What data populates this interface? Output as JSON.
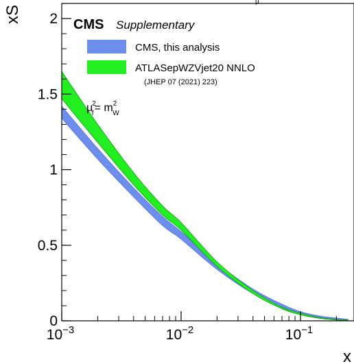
{
  "chart_data": {
    "type": "area",
    "title": "",
    "xlabel": "x",
    "ylabel": "xS",
    "xscale": "log",
    "xlim": [
      0.001,
      0.25
    ],
    "ylim": [
      0,
      2.1
    ],
    "x_ticks": [
      {
        "value": 0.001,
        "base": "10",
        "exp": "−3"
      },
      {
        "value": 0.01,
        "base": "10",
        "exp": "−2"
      },
      {
        "value": 0.1,
        "base": "10",
        "exp": "−1"
      }
    ],
    "y_ticks": [
      {
        "value": 0,
        "label": "0"
      },
      {
        "value": 0.5,
        "label": "0.5"
      },
      {
        "value": 1,
        "label": "1"
      },
      {
        "value": 1.5,
        "label": "1.5"
      },
      {
        "value": 2,
        "label": "2"
      }
    ],
    "experiment": "CMS",
    "experiment_extra": "Supplementary",
    "scale_label": {
      "mu": "μ",
      "mu_sub": "f",
      "mu_sup": "2",
      "eq": "= m",
      "m_sub": "W",
      "m_sup": "2"
    },
    "clipped_top_text": "μ",
    "legend_position": "top-left",
    "series": [
      {
        "name": "CMS, this analysis",
        "color": "#6d8eed",
        "band": {
          "x": [
            0.001,
            0.002,
            0.004,
            0.007,
            0.01,
            0.02,
            0.04,
            0.07,
            0.1,
            0.15,
            0.25
          ],
          "low": [
            1.34,
            1.07,
            0.82,
            0.63,
            0.54,
            0.34,
            0.18,
            0.09,
            0.05,
            0.02,
            0.0
          ],
          "high": [
            1.42,
            1.14,
            0.88,
            0.69,
            0.59,
            0.38,
            0.21,
            0.11,
            0.06,
            0.03,
            0.01
          ]
        }
      },
      {
        "name": "ATLASepWZVjet20 NNLO",
        "note": "(JHEP 07 (2021) 223)",
        "color": "#22ee22",
        "band": {
          "x": [
            0.001,
            0.002,
            0.004,
            0.007,
            0.01,
            0.02,
            0.04,
            0.07,
            0.1,
            0.15,
            0.25
          ],
          "low": [
            1.47,
            1.18,
            0.9,
            0.7,
            0.6,
            0.36,
            0.18,
            0.08,
            0.04,
            0.015,
            0.0
          ],
          "high": [
            1.65,
            1.3,
            0.98,
            0.76,
            0.65,
            0.39,
            0.2,
            0.09,
            0.05,
            0.02,
            0.005
          ]
        }
      }
    ]
  }
}
